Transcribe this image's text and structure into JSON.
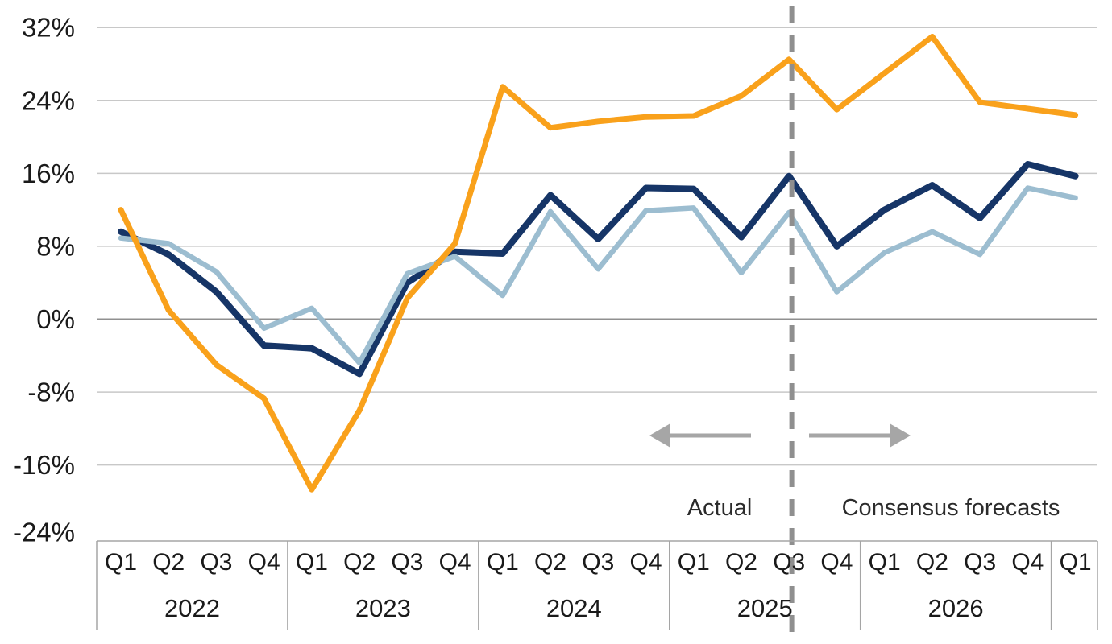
{
  "colors": {
    "orange": "#F9A11B",
    "navy": "#163567",
    "light_blue": "#9CBDD0",
    "gridline": "#C8C8C8",
    "zero_line": "#909090",
    "axis_border": "#A5A5A5",
    "divider": "#8F8F8F",
    "arrow": "#A6A6A6",
    "text": "#1A1A1A"
  },
  "chart_data": {
    "type": "line",
    "title": "",
    "xlabel": "",
    "ylabel": "",
    "unit": "percent",
    "ylim": [
      -24,
      32
    ],
    "grid": true,
    "legend_position": "none",
    "ytick_values": [
      32,
      24,
      16,
      8,
      0,
      -8,
      -16,
      -24
    ],
    "ytick_labels": [
      "32%",
      "24%",
      "16%",
      "8%",
      "0%",
      "-8%",
      "-16%",
      "-24%"
    ],
    "x_groups": [
      {
        "year": "2022",
        "quarters": [
          "Q1",
          "Q2",
          "Q3",
          "Q4"
        ]
      },
      {
        "year": "2023",
        "quarters": [
          "Q1",
          "Q2",
          "Q3",
          "Q4"
        ]
      },
      {
        "year": "2024",
        "quarters": [
          "Q1",
          "Q2",
          "Q3",
          "Q4"
        ]
      },
      {
        "year": "2025",
        "quarters": [
          "Q1",
          "Q2",
          "Q3",
          "Q4"
        ]
      },
      {
        "year": "2026",
        "quarters": [
          "Q1",
          "Q2",
          "Q3",
          "Q4"
        ]
      },
      {
        "year": "",
        "quarters": [
          "Q1"
        ]
      }
    ],
    "categories": [
      "2022 Q1",
      "2022 Q2",
      "2022 Q3",
      "2022 Q4",
      "2023 Q1",
      "2023 Q2",
      "2023 Q3",
      "2023 Q4",
      "2024 Q1",
      "2024 Q2",
      "2024 Q3",
      "2024 Q4",
      "2025 Q1",
      "2025 Q2",
      "2025 Q3",
      "2025 Q4",
      "2026 Q1",
      "2026 Q2",
      "2026 Q3",
      "2026 Q4",
      "2027 Q1"
    ],
    "series": [
      {
        "name": "navy-line",
        "color_key": "navy",
        "stroke_width": 8,
        "values": [
          9.6,
          7.1,
          3.0,
          -2.9,
          -3.2,
          -6.0,
          4.0,
          7.4,
          7.2,
          13.6,
          8.8,
          14.4,
          14.3,
          9.0,
          15.7,
          8.0,
          12.0,
          14.7,
          11.1,
          17.0,
          15.7
        ]
      },
      {
        "name": "light-blue-line",
        "color_key": "light_blue",
        "stroke_width": 6.5,
        "values": [
          8.9,
          8.3,
          5.2,
          -1.0,
          1.2,
          -4.8,
          5.0,
          6.9,
          2.6,
          11.8,
          5.5,
          11.9,
          12.2,
          5.1,
          11.7,
          3.0,
          7.3,
          9.6,
          7.1,
          14.4,
          13.3
        ]
      },
      {
        "name": "orange-line",
        "color_key": "orange",
        "stroke_width": 7,
        "values": [
          12.0,
          1.0,
          -5.0,
          -8.7,
          -18.7,
          -10.0,
          2.3,
          8.3,
          25.5,
          21.0,
          21.7,
          22.2,
          22.3,
          24.5,
          28.5,
          23.0,
          27.0,
          31.0,
          23.8,
          23.1,
          22.4
        ]
      }
    ],
    "divider": {
      "after_category_index": 14,
      "style": "dashed-vertical"
    },
    "annotations": {
      "actual_label": "Actual",
      "forecast_label": "Consensus forecasts"
    }
  }
}
